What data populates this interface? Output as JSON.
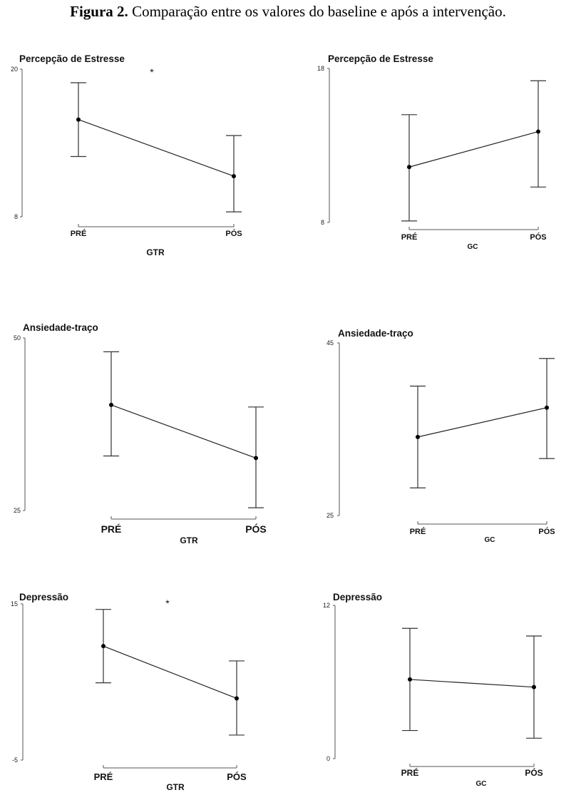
{
  "figure": {
    "label": "Figura 2.",
    "text": " Comparação entre os valores do baseline e após a intervenção."
  },
  "chart_data": [
    {
      "type": "line",
      "title": "Percepção de Estresse",
      "xlabel": "GTR",
      "categories": [
        "PRÉ",
        "PÓS"
      ],
      "ylim": [
        8,
        20
      ],
      "ytick_labels": [
        "20",
        "8"
      ],
      "means": [
        15.9,
        11.3
      ],
      "upper": [
        18.9,
        14.6
      ],
      "lower": [
        12.9,
        8.4
      ],
      "annotation": "*"
    },
    {
      "type": "line",
      "title": "Percepção de Estresse",
      "xlabel": "GC",
      "categories": [
        "PRÉ",
        "PÓS"
      ],
      "ylim": [
        8,
        18
      ],
      "ytick_labels": [
        "18",
        "8"
      ],
      "means": [
        11.6,
        13.9
      ],
      "upper": [
        15.0,
        17.2
      ],
      "lower": [
        8.1,
        10.3
      ],
      "annotation": ""
    },
    {
      "type": "line",
      "title": "Ansiedade-traço",
      "xlabel": "GTR",
      "categories": [
        "PRÉ",
        "PÓS"
      ],
      "ylim": [
        25,
        50
      ],
      "ytick_labels": [
        "50",
        "25"
      ],
      "means": [
        40.3,
        32.6
      ],
      "upper": [
        48.0,
        40.0
      ],
      "lower": [
        32.9,
        25.4
      ],
      "annotation": ""
    },
    {
      "type": "line",
      "title": "Ansiedade-traço",
      "xlabel": "GC",
      "categories": [
        "PRÉ",
        "PÓS"
      ],
      "ylim": [
        25,
        45
      ],
      "ytick_labels": [
        "45",
        "25"
      ],
      "means": [
        34.1,
        37.5
      ],
      "upper": [
        40.0,
        43.2
      ],
      "lower": [
        28.2,
        31.6
      ],
      "annotation": ""
    },
    {
      "type": "line",
      "title": "Depressão",
      "xlabel": "GTR",
      "categories": [
        "PRÉ",
        "PÓS"
      ],
      "ylim": [
        -5,
        15
      ],
      "ytick_labels": [
        "15",
        "-5"
      ],
      "means": [
        9.6,
        2.9
      ],
      "upper": [
        14.3,
        7.7
      ],
      "lower": [
        4.9,
        -1.8
      ],
      "annotation": "*"
    },
    {
      "type": "line",
      "title": "Depressão",
      "xlabel": "GC",
      "categories": [
        "PRÉ",
        "PÓS"
      ],
      "ylim": [
        0,
        12
      ],
      "ytick_labels": [
        "12",
        "0"
      ],
      "means": [
        6.2,
        5.6
      ],
      "upper": [
        10.2,
        9.6
      ],
      "lower": [
        2.2,
        1.6
      ],
      "annotation": ""
    }
  ]
}
